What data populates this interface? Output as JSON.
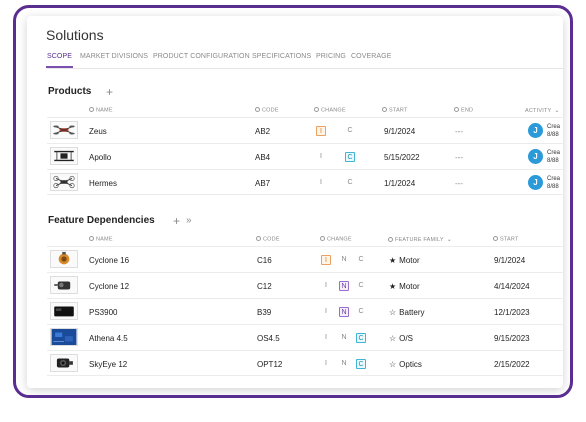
{
  "app": {
    "title": "Solutions",
    "tabs": [
      {
        "label": "SCOPE",
        "active": true
      },
      {
        "label": "MARKET DIVISIONS"
      },
      {
        "label": "PRODUCT CONFIGURATION"
      },
      {
        "label": "SPECIFICATIONS"
      },
      {
        "label": "PRICING"
      },
      {
        "label": "COVERAGE"
      }
    ]
  },
  "products": {
    "title": "Products",
    "add_icon": "+",
    "columns": {
      "name": "NAME",
      "code": "CODE",
      "change": "CHANGE",
      "start": "START",
      "end": "END",
      "activity": "ACTIVITY"
    },
    "rows": [
      {
        "name": "Zeus",
        "code": "AB2",
        "i": "I",
        "c": "C",
        "highlight": "I",
        "start": "9/1/2024",
        "end": "---",
        "avatar": "J",
        "activity_line1": "Crea",
        "activity_line2": "8/88"
      },
      {
        "name": "Apollo",
        "code": "AB4",
        "i": "I",
        "c": "C",
        "highlight": "C",
        "start": "5/15/2022",
        "end": "---",
        "avatar": "J",
        "activity_line1": "Crea",
        "activity_line2": "8/88"
      },
      {
        "name": "Hermes",
        "code": "AB7",
        "i": "I",
        "c": "C",
        "highlight": "",
        "start": "1/1/2024",
        "end": "---",
        "avatar": "J",
        "activity_line1": "Crea",
        "activity_line2": "8/88"
      }
    ]
  },
  "features": {
    "title": "Feature Dependencies",
    "add_icon": "+",
    "link_icon": "»",
    "columns": {
      "name": "NAME",
      "code": "CODE",
      "change": "CHANGE",
      "family": "FEATURE FAMILY",
      "start": "START"
    },
    "rows": [
      {
        "name": "Cyclone 16",
        "code": "C16",
        "i": "I",
        "n": "N",
        "c": "C",
        "highlight": "I",
        "star": "★",
        "family": "Motor",
        "start": "9/1/2024"
      },
      {
        "name": "Cyclone 12",
        "code": "C12",
        "i": "I",
        "n": "N",
        "c": "C",
        "highlight": "N",
        "star": "★",
        "family": "Motor",
        "start": "4/14/2024"
      },
      {
        "name": "PS3900",
        "code": "B39",
        "i": "I",
        "n": "N",
        "c": "C",
        "highlight": "N",
        "star": "☆",
        "family": "Battery",
        "start": "12/1/2023"
      },
      {
        "name": "Athena 4.5",
        "code": "OS4.5",
        "i": "I",
        "n": "N",
        "c": "C",
        "highlight": "C",
        "star": "☆",
        "family": "O/S",
        "start": "9/15/2023"
      },
      {
        "name": "SkyEye 12",
        "code": "OPT12",
        "i": "I",
        "n": "N",
        "c": "C",
        "highlight": "C",
        "star": "☆",
        "family": "Optics",
        "start": "2/15/2022"
      }
    ]
  },
  "colors": {
    "accent": "#5a2d91",
    "avatar": "#2a9ad8",
    "flag_i": "#e07b1a",
    "flag_c": "#1a8fb0",
    "flag_n": "#6b3fa0"
  }
}
